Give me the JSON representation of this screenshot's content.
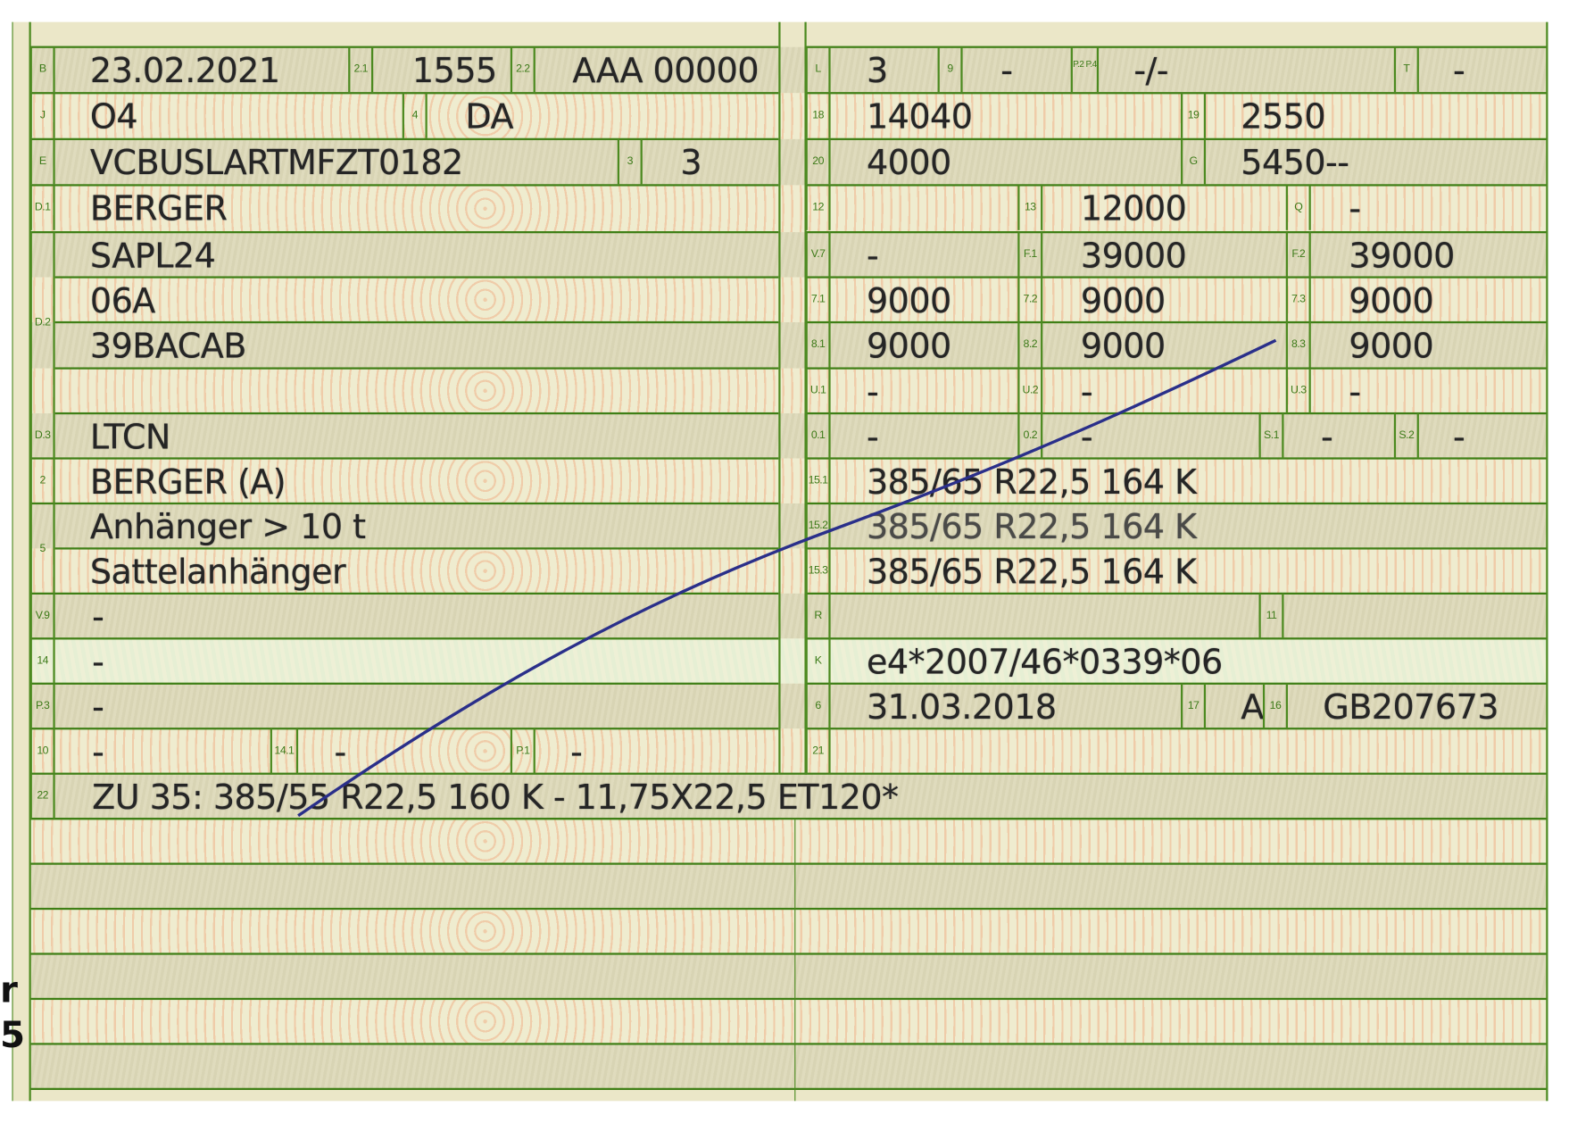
{
  "document": {
    "left": {
      "B": {
        "label": "B",
        "value": "23.02.2021"
      },
      "f2_1": {
        "label": "2.1",
        "value": "1555"
      },
      "f2_2": {
        "label": "2.2",
        "value": "AAA 00000"
      },
      "J": {
        "label": "J",
        "value": "O4"
      },
      "f4": {
        "label": "4",
        "value": "DA"
      },
      "E": {
        "label": "E",
        "value": "VCBUSLARTMFZT0182"
      },
      "f3": {
        "label": "3",
        "value": "3"
      },
      "D1": {
        "label": "D.1",
        "value": "BERGER"
      },
      "D2": {
        "label": "D.2",
        "values": [
          "SAPL24",
          "06A",
          "39BACAB",
          ""
        ]
      },
      "D3": {
        "label": "D.3",
        "value": "LTCN"
      },
      "f2": {
        "label": "2",
        "value": "BERGER (A)"
      },
      "f5": {
        "label": "5",
        "values": [
          "Anhänger > 10 t",
          "Sattelanhänger"
        ]
      },
      "V9": {
        "label": "V.9",
        "value": "-"
      },
      "f14": {
        "label": "14",
        "value": "-"
      },
      "P3": {
        "label": "P.3",
        "value": "-"
      },
      "f10": {
        "label": "10",
        "value": "-"
      },
      "f14_1": {
        "label": "14.1",
        "value": "-"
      },
      "P1": {
        "label": "P.1",
        "value": "-"
      },
      "f22": {
        "label": "22",
        "value": "ZU 35: 385/55 R22,5 160 K - 11,75X22,5 ET120*"
      }
    },
    "right": {
      "L": {
        "label": "L",
        "value": "3"
      },
      "f9": {
        "label": "9",
        "value": "-"
      },
      "P2P4": {
        "label": "P.2 P.4",
        "value": "-/-"
      },
      "T": {
        "label": "T",
        "value": "-"
      },
      "f18": {
        "label": "18",
        "value": "14040"
      },
      "f19": {
        "label": "19",
        "value": "2550"
      },
      "f20": {
        "label": "20",
        "value": "4000"
      },
      "G": {
        "label": "G",
        "value": "5450--"
      },
      "f12": {
        "label": "12",
        "value": ""
      },
      "f13": {
        "label": "13",
        "value": "12000"
      },
      "Q": {
        "label": "Q",
        "value": "-"
      },
      "V7": {
        "label": "V.7",
        "value": "-"
      },
      "F1": {
        "label": "F.1",
        "value": "39000"
      },
      "F2": {
        "label": "F.2",
        "value": "39000"
      },
      "f7_1": {
        "label": "7.1",
        "value": "9000"
      },
      "f7_2": {
        "label": "7.2",
        "value": "9000"
      },
      "f7_3": {
        "label": "7.3",
        "value": "9000"
      },
      "f8_1": {
        "label": "8.1",
        "value": "9000"
      },
      "f8_2": {
        "label": "8.2",
        "value": "9000"
      },
      "f8_3": {
        "label": "8.3",
        "value": "9000"
      },
      "U1": {
        "label": "U.1",
        "value": "-"
      },
      "U2": {
        "label": "U.2",
        "value": "-"
      },
      "U3": {
        "label": "U.3",
        "value": "-"
      },
      "O1": {
        "label": "0.1",
        "value": "-"
      },
      "O2": {
        "label": "0.2",
        "value": "-"
      },
      "S1": {
        "label": "S.1",
        "value": "-"
      },
      "S2": {
        "label": "S.2",
        "value": "-"
      },
      "f15_1": {
        "label": "15.1",
        "value": "385/65 R22,5 164 K"
      },
      "f15_2": {
        "label": "15.2",
        "value": "385/65 R22,5 164 K"
      },
      "f15_3": {
        "label": "15.3",
        "value": "385/65 R22,5 164 K"
      },
      "R": {
        "label": "R",
        "value": ""
      },
      "f11": {
        "label": "11",
        "value": ""
      },
      "K": {
        "label": "K",
        "value": "e4*2007/46*0339*06"
      },
      "f6": {
        "label": "6",
        "value": "31.03.2018"
      },
      "f17": {
        "label": "17",
        "value": "A"
      },
      "f16": {
        "label": "16",
        "value": "GB207673"
      },
      "f21": {
        "label": "21",
        "value": ""
      }
    },
    "margin_text": [
      "r",
      "5"
    ],
    "colors": {
      "rules": "#3f7f16",
      "labels": "#3c7a18",
      "ink": "#252525",
      "pen": "#2a2f8a",
      "paper": "#ebe7c8",
      "guilloche": "#f07846"
    }
  }
}
